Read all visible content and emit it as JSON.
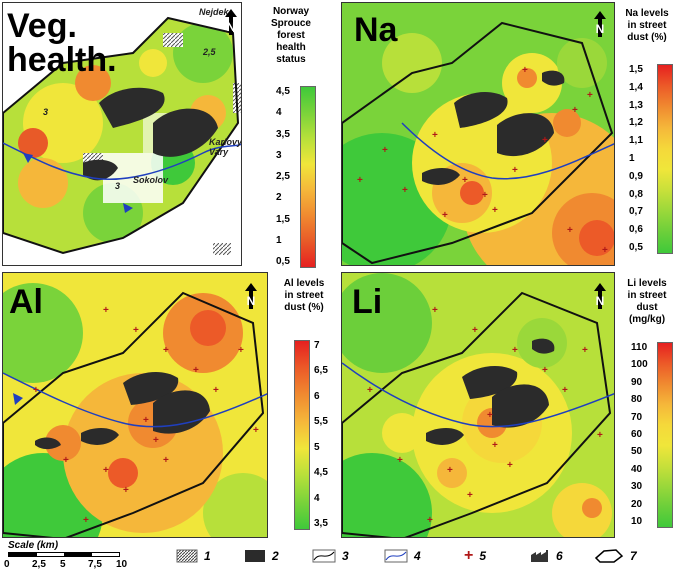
{
  "panels": {
    "veg": {
      "title": "Veg.\nhealth.",
      "legend_title": "Norway\nSprouce\nforest\nhealth\nstatus",
      "ticks": [
        "4,5",
        "4",
        "3,5",
        "3",
        "2,5",
        "2",
        "1,5",
        "1",
        "0,5"
      ],
      "places": {
        "nejdek": "Nejdek",
        "karlovy": "Karlovy\nVary",
        "sokolov": "Sokolov"
      },
      "contour_labels": [
        "2,5",
        "3",
        "3"
      ],
      "gradient": [
        "#3fc93a",
        "#7ad33a",
        "#b7e03a",
        "#f0e63a",
        "#f5b73a",
        "#f08a30",
        "#e85a28",
        "#e62020"
      ]
    },
    "na": {
      "title": "Na",
      "legend_title": "Na levels\nin street\ndust (%)",
      "ticks": [
        "1,5",
        "1,4",
        "1,3",
        "1,2",
        "1,1",
        "1",
        "0,9",
        "0,8",
        "0,7",
        "0,6",
        "0,5"
      ],
      "gradient": [
        "#e62020",
        "#ec5a28",
        "#f08a30",
        "#f5b73a",
        "#f5d83a",
        "#f0e63a",
        "#c8e03a",
        "#9ad83a",
        "#6ccf3a",
        "#3fc93a"
      ]
    },
    "al": {
      "title": "Al",
      "legend_title": "Al levels\nin street\ndust (%)",
      "ticks": [
        "7",
        "6,5",
        "6",
        "5,5",
        "5",
        "4,5",
        "4",
        "3,5"
      ],
      "gradient": [
        "#e62020",
        "#ec5a28",
        "#f08a30",
        "#f5b73a",
        "#f0e63a",
        "#b7e03a",
        "#7ad33a",
        "#3fc93a"
      ]
    },
    "li": {
      "title": "Li",
      "legend_title": "Li levels\nin street\ndust\n(mg/kg)",
      "ticks": [
        "110",
        "100",
        "90",
        "80",
        "70",
        "60",
        "50",
        "40",
        "30",
        "20",
        "10"
      ],
      "gradient": [
        "#e62020",
        "#ec5a28",
        "#f08a30",
        "#f5b73a",
        "#f5d83a",
        "#f0e63a",
        "#c8e03a",
        "#9ad83a",
        "#6ccf3a",
        "#3fc93a"
      ]
    }
  },
  "scale": {
    "label": "Scale (km)",
    "ticks": [
      "0",
      "2,5",
      "5",
      "7,5",
      "10"
    ]
  },
  "legend_items": [
    {
      "num": "1",
      "icon": "hatched-area-icon"
    },
    {
      "num": "2",
      "icon": "mine-area-icon"
    },
    {
      "num": "3",
      "icon": "contour-line-icon"
    },
    {
      "num": "4",
      "icon": "river-icon"
    },
    {
      "num": "5",
      "icon": "sampling-point-icon"
    },
    {
      "num": "6",
      "icon": "factory-icon"
    },
    {
      "num": "7",
      "icon": "study-area-boundary-icon"
    }
  ],
  "colors": {
    "mine": "#2b2b2b",
    "river": "#1f3fbf",
    "sample": "#b01818",
    "boundary": "#111111"
  }
}
